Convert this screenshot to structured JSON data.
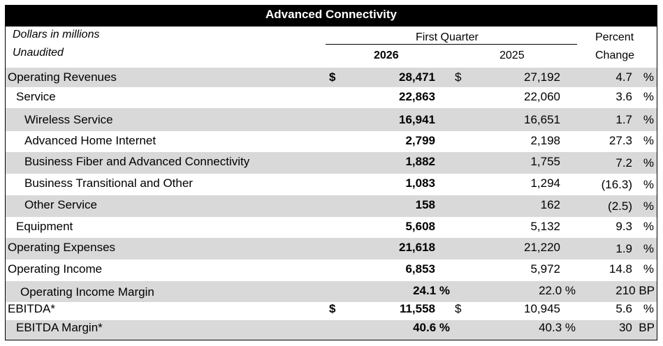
{
  "title": "Advanced Connectivity",
  "header": {
    "units": "Dollars in millions",
    "unaudited": "Unaudited",
    "period": "First Quarter",
    "year_current": "2026",
    "year_prior": "2025",
    "pct_line1": "Percent",
    "pct_line2": "Change"
  },
  "rows": [
    {
      "label": "Operating Revenues",
      "cur": "$",
      "v2026": "28,471",
      "cur_prior": "$",
      "v2025": "27,192",
      "change": "4.7",
      "unit": "%"
    },
    {
      "label": "Service",
      "v2026": "22,863",
      "v2025": "22,060",
      "change": "3.6",
      "unit": "%"
    },
    {
      "label": "Wireless Service",
      "v2026": "16,941",
      "v2025": "16,651",
      "change": "1.7",
      "unit": "%"
    },
    {
      "label": "Advanced Home Internet",
      "v2026": "2,799",
      "v2025": "2,198",
      "change": "27.3",
      "unit": "%"
    },
    {
      "label": "Business Fiber and Advanced Connectivity",
      "v2026": "1,882",
      "v2025": "1,755",
      "change": "7.2",
      "unit": "%"
    },
    {
      "label": "Business Transitional and Other",
      "v2026": "1,083",
      "v2025": "1,294",
      "change": "(16.3)",
      "unit": "%"
    },
    {
      "label": "Other Service",
      "v2026": "158",
      "v2025": "162",
      "change": "(2.5)",
      "unit": "%"
    },
    {
      "label": "Equipment",
      "v2026": "5,608",
      "v2025": "5,132",
      "change": "9.3",
      "unit": "%"
    },
    {
      "label": "Operating Expenses",
      "v2026": "21,618",
      "v2025": "21,220",
      "change": "1.9",
      "unit": "%"
    },
    {
      "label": "Operating Income",
      "v2026": "6,853",
      "v2025": "5,972",
      "change": "14.8",
      "unit": "%"
    },
    {
      "label": "Operating Income Margin",
      "v2026": "24.1 %",
      "v2025": "22.0 %",
      "change": "210 BP"
    },
    {
      "label": "EBITDA*",
      "cur": "$",
      "v2026": "11,558",
      "cur_prior": "$",
      "v2025": "10,945",
      "change": "5.6",
      "unit": "%"
    },
    {
      "label": "EBITDA Margin*",
      "v2026": "40.6 %",
      "v2025": "40.3 %",
      "change": "30  BP"
    }
  ]
}
